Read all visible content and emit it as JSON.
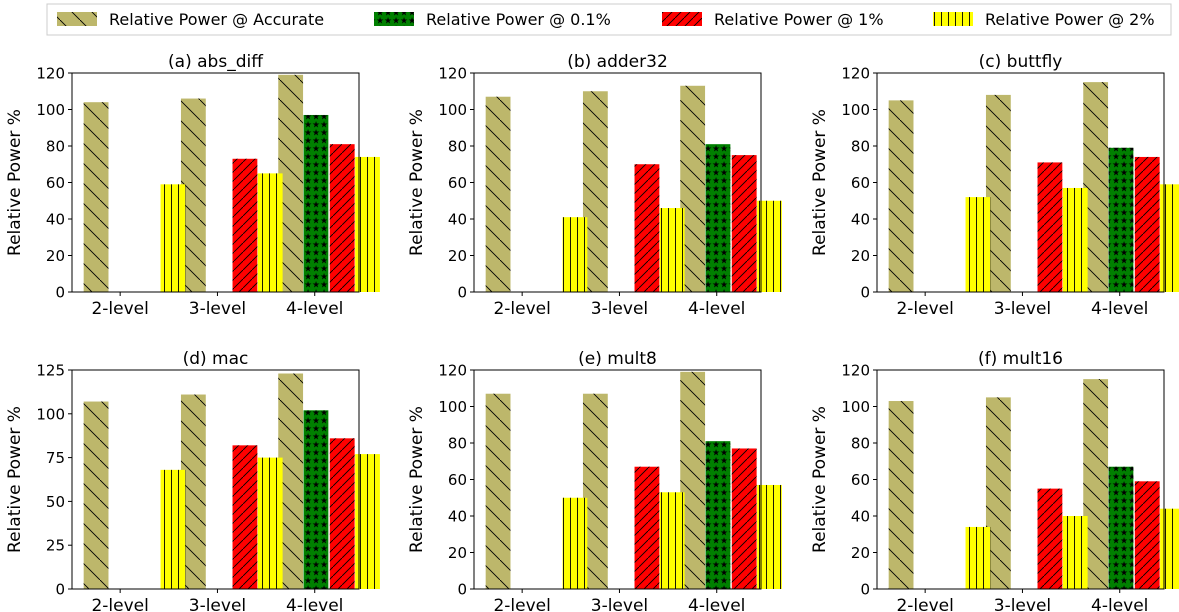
{
  "legend": {
    "placement": "top-center",
    "entries": [
      {
        "label": "Relative Power @ Accurate",
        "color": "#bdb76b",
        "pattern": "backslash"
      },
      {
        "label": "Relative Power @ 0.1%",
        "color": "#008000",
        "pattern": "stars"
      },
      {
        "label": "Relative Power @ 1%",
        "color": "#ff0000",
        "pattern": "slash"
      },
      {
        "label": "Relative Power @ 2%",
        "color": "#ffff00",
        "pattern": "vertical"
      }
    ]
  },
  "chart_data": [
    {
      "type": "bar",
      "title": "(a) abs_diff",
      "ylabel": "Relative Power %",
      "categories": [
        "2-level",
        "3-level",
        "4-level"
      ],
      "ylim": [
        0,
        120
      ],
      "yticks": [
        0,
        20,
        40,
        60,
        80,
        100,
        120
      ],
      "series": [
        {
          "name": "Relative Power @ Accurate",
          "values": [
            104,
            106,
            119
          ]
        },
        {
          "name": "Relative Power @ 0.1%",
          "values": [
            null,
            null,
            97
          ]
        },
        {
          "name": "Relative Power @ 1%",
          "values": [
            null,
            73,
            81
          ]
        },
        {
          "name": "Relative Power @ 2%",
          "values": [
            59,
            65,
            74
          ]
        }
      ]
    },
    {
      "type": "bar",
      "title": "(b) adder32",
      "ylabel": "Relative Power %",
      "categories": [
        "2-level",
        "3-level",
        "4-level"
      ],
      "ylim": [
        0,
        120
      ],
      "yticks": [
        0,
        20,
        40,
        60,
        80,
        100,
        120
      ],
      "series": [
        {
          "name": "Relative Power @ Accurate",
          "values": [
            107,
            110,
            113
          ]
        },
        {
          "name": "Relative Power @ 0.1%",
          "values": [
            null,
            null,
            81
          ]
        },
        {
          "name": "Relative Power @ 1%",
          "values": [
            null,
            70,
            75
          ]
        },
        {
          "name": "Relative Power @ 2%",
          "values": [
            41,
            46,
            50
          ]
        }
      ]
    },
    {
      "type": "bar",
      "title": "(c) buttfly",
      "ylabel": "Relative Power %",
      "categories": [
        "2-level",
        "3-level",
        "4-level"
      ],
      "ylim": [
        0,
        120
      ],
      "yticks": [
        0,
        20,
        40,
        60,
        80,
        100,
        120
      ],
      "series": [
        {
          "name": "Relative Power @ Accurate",
          "values": [
            105,
            108,
            115
          ]
        },
        {
          "name": "Relative Power @ 0.1%",
          "values": [
            null,
            null,
            79
          ]
        },
        {
          "name": "Relative Power @ 1%",
          "values": [
            null,
            71,
            74
          ]
        },
        {
          "name": "Relative Power @ 2%",
          "values": [
            52,
            57,
            59
          ]
        }
      ]
    },
    {
      "type": "bar",
      "title": "(d) mac",
      "ylabel": "Relative Power %",
      "categories": [
        "2-level",
        "3-level",
        "4-level"
      ],
      "ylim": [
        0,
        125
      ],
      "yticks": [
        0,
        25,
        50,
        75,
        100,
        125
      ],
      "series": [
        {
          "name": "Relative Power @ Accurate",
          "values": [
            107,
            111,
            123
          ]
        },
        {
          "name": "Relative Power @ 0.1%",
          "values": [
            null,
            null,
            102
          ]
        },
        {
          "name": "Relative Power @ 1%",
          "values": [
            null,
            82,
            86
          ]
        },
        {
          "name": "Relative Power @ 2%",
          "values": [
            68,
            75,
            77
          ]
        }
      ]
    },
    {
      "type": "bar",
      "title": "(e) mult8",
      "ylabel": "Relative Power %",
      "categories": [
        "2-level",
        "3-level",
        "4-level"
      ],
      "ylim": [
        0,
        120
      ],
      "yticks": [
        0,
        20,
        40,
        60,
        80,
        100,
        120
      ],
      "series": [
        {
          "name": "Relative Power @ Accurate",
          "values": [
            107,
            107,
            119
          ]
        },
        {
          "name": "Relative Power @ 0.1%",
          "values": [
            null,
            null,
            81
          ]
        },
        {
          "name": "Relative Power @ 1%",
          "values": [
            null,
            67,
            77
          ]
        },
        {
          "name": "Relative Power @ 2%",
          "values": [
            50,
            53,
            57
          ]
        }
      ]
    },
    {
      "type": "bar",
      "title": "(f) mult16",
      "ylabel": "Relative Power %",
      "categories": [
        "2-level",
        "3-level",
        "4-level"
      ],
      "ylim": [
        0,
        120
      ],
      "yticks": [
        0,
        20,
        40,
        60,
        80,
        100,
        120
      ],
      "series": [
        {
          "name": "Relative Power @ Accurate",
          "values": [
            103,
            105,
            115
          ]
        },
        {
          "name": "Relative Power @ 0.1%",
          "values": [
            null,
            null,
            67
          ]
        },
        {
          "name": "Relative Power @ 1%",
          "values": [
            null,
            55,
            59
          ]
        },
        {
          "name": "Relative Power @ 2%",
          "values": [
            34,
            40,
            44
          ]
        }
      ]
    }
  ]
}
